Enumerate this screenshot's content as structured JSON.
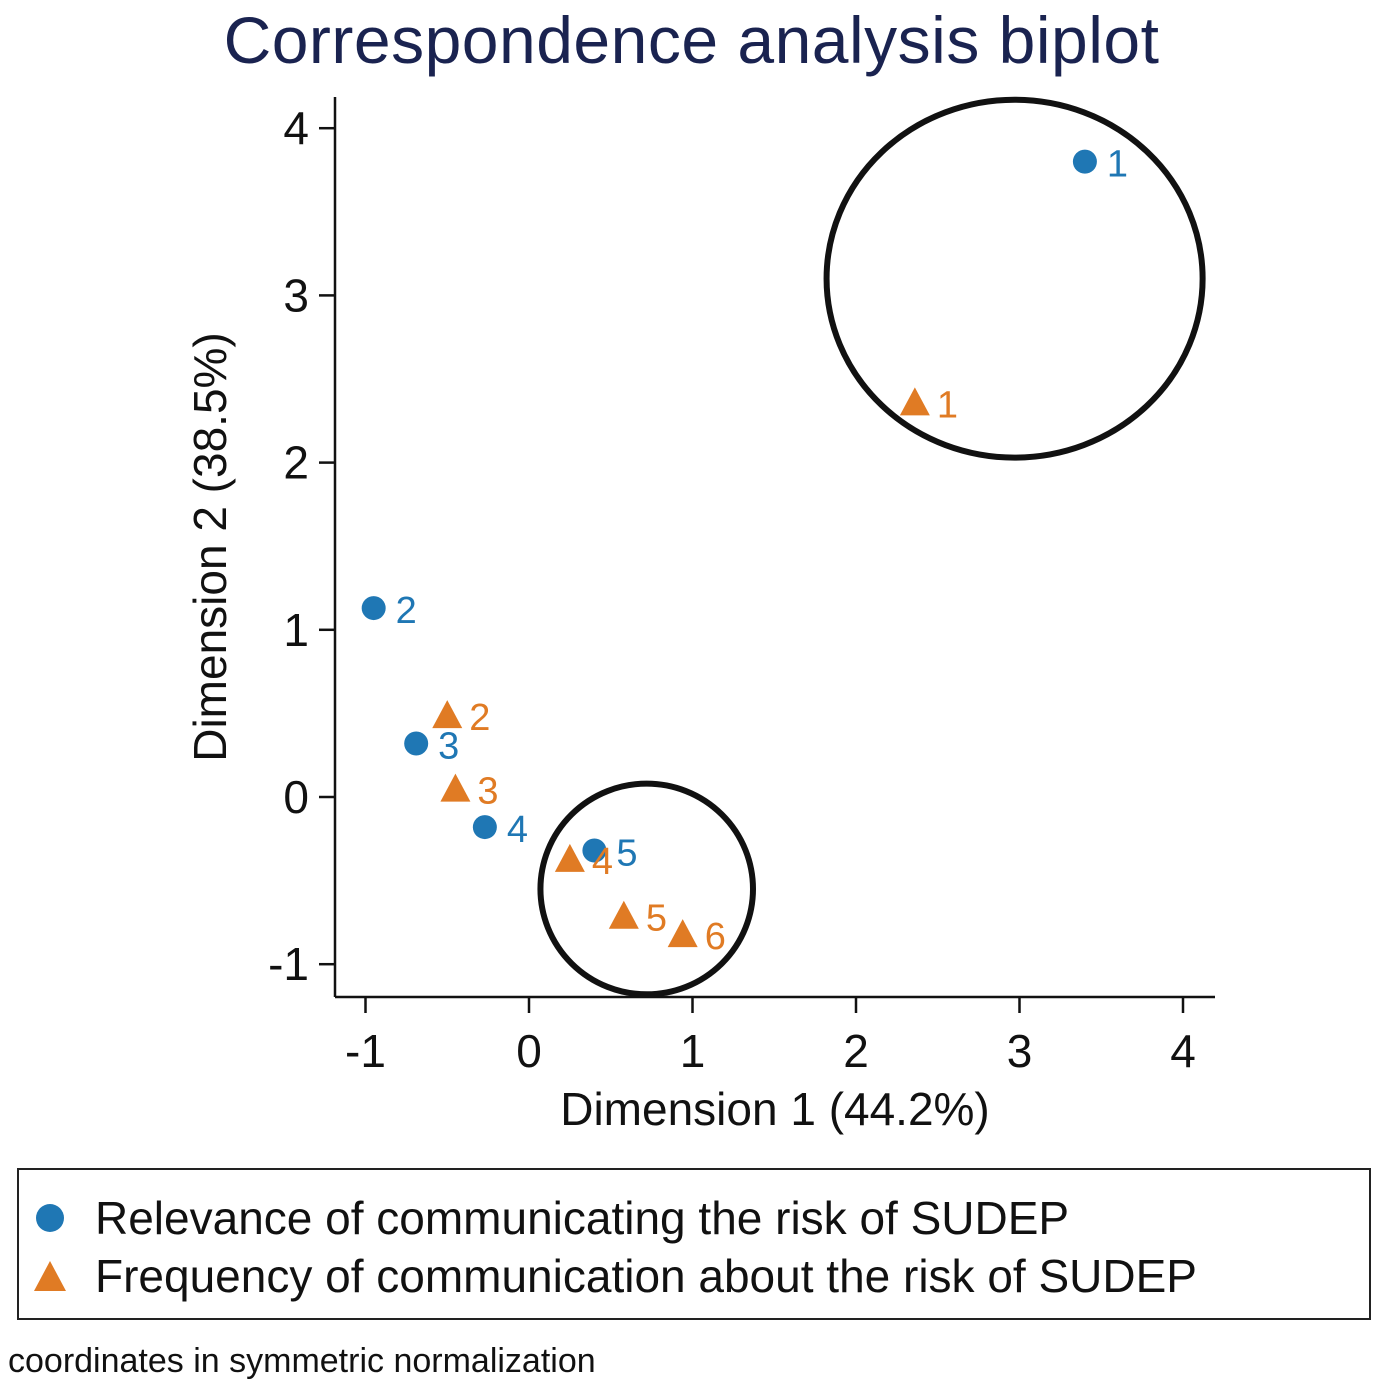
{
  "chart_data": {
    "type": "scatter",
    "title": "Correspondence analysis biplot",
    "xlabel": "Dimension 1 (44.2%)",
    "ylabel": "Dimension 2 (38.5%)",
    "xlim": [
      -1.2,
      4.2
    ],
    "ylim": [
      -1.2,
      4.2
    ],
    "xticks": [
      -1,
      0,
      1,
      2,
      3,
      4
    ],
    "yticks": [
      -1,
      0,
      1,
      2,
      3,
      4
    ],
    "grid": false,
    "legend_position": "bottom",
    "series": [
      {
        "name": "Relevance of communicating the risk of SUDEP",
        "marker": "circle",
        "color": "#1f77b4",
        "points": [
          {
            "label": "1",
            "x": 3.4,
            "y": 3.8
          },
          {
            "label": "2",
            "x": -0.95,
            "y": 1.13
          },
          {
            "label": "3",
            "x": -0.69,
            "y": 0.32
          },
          {
            "label": "4",
            "x": -0.27,
            "y": -0.18
          },
          {
            "label": "5",
            "x": 0.4,
            "y": -0.32
          }
        ]
      },
      {
        "name": "Frequency of communication about the risk of SUDEP",
        "marker": "triangle",
        "color": "#e07b24",
        "points": [
          {
            "label": "1",
            "x": 2.36,
            "y": 2.36
          },
          {
            "label": "2",
            "x": -0.5,
            "y": 0.49
          },
          {
            "label": "3",
            "x": -0.45,
            "y": 0.05
          },
          {
            "label": "4",
            "x": 0.25,
            "y": -0.37
          },
          {
            "label": "5",
            "x": 0.58,
            "y": -0.71
          },
          {
            "label": "6",
            "x": 0.94,
            "y": -0.82
          }
        ]
      }
    ],
    "annotations": [
      {
        "shape": "circle",
        "center": [
          2.97,
          3.1
        ],
        "radius": [
          1.15,
          1.07
        ]
      },
      {
        "shape": "circle",
        "center": [
          0.72,
          -0.55
        ],
        "radius": [
          0.65,
          0.63
        ]
      }
    ]
  },
  "note": "coordinates in symmetric normalization"
}
